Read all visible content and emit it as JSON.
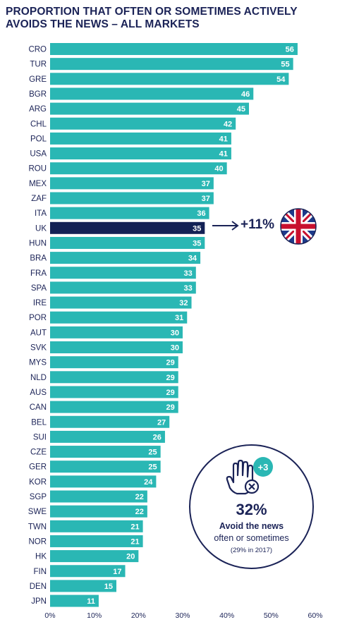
{
  "title": "PROPORTION THAT OFTEN OR SOMETIMES ACTIVELY AVOIDS THE NEWS – ALL MARKETS",
  "colors": {
    "bar": "#2ab7b4",
    "highlight": "#132155",
    "text": "#1b2357"
  },
  "annotation": {
    "text": "+11%",
    "target": "UK",
    "icon": "uk-flag-icon"
  },
  "stat": {
    "badge": "+3",
    "value": "32%",
    "line1": "Avoid the news",
    "line2": "often or sometimes",
    "line3": "(29% in 2017)",
    "icon": "raised-hand-block-icon"
  },
  "chart_data": {
    "type": "bar",
    "orientation": "horizontal",
    "categories": [
      "CRO",
      "TUR",
      "GRE",
      "BGR",
      "ARG",
      "CHL",
      "POL",
      "USA",
      "ROU",
      "MEX",
      "ZAF",
      "ITA",
      "UK",
      "HUN",
      "BRA",
      "FRA",
      "SPA",
      "IRE",
      "POR",
      "AUT",
      "SVK",
      "MYS",
      "NLD",
      "AUS",
      "CAN",
      "BEL",
      "SUI",
      "CZE",
      "GER",
      "KOR",
      "SGP",
      "SWE",
      "TWN",
      "NOR",
      "HK",
      "FIN",
      "DEN",
      "JPN"
    ],
    "values": [
      56,
      55,
      54,
      46,
      45,
      42,
      41,
      41,
      40,
      37,
      37,
      36,
      35,
      35,
      34,
      33,
      33,
      32,
      31,
      30,
      30,
      29,
      29,
      29,
      29,
      27,
      26,
      25,
      25,
      24,
      22,
      22,
      21,
      21,
      20,
      17,
      15,
      11
    ],
    "highlight": "UK",
    "xlim": [
      0,
      60
    ],
    "xticks": [
      "0%",
      "10%",
      "20%",
      "30%",
      "40%",
      "50%",
      "60%"
    ],
    "grid": false
  }
}
